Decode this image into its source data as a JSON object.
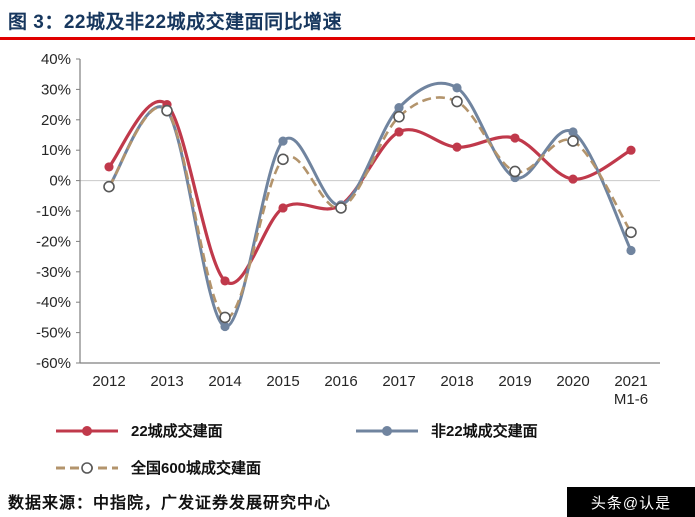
{
  "header": {
    "title": "图 3：22城及非22城成交建面同比增速"
  },
  "theme": {
    "title_color": "#17375e",
    "rule_color": "#e00000",
    "axis_color": "#7f7f7f",
    "tick_label_color": "#262626",
    "zero_line_color": "#c9c9c9",
    "source_color": "#111111",
    "watermark_bg": "#000000",
    "watermark_fg": "#ffffff"
  },
  "chart_data": {
    "type": "line",
    "title": "22城及非22城成交建面同比增速",
    "categories": [
      "2012",
      "2013",
      "2014",
      "2015",
      "2016",
      "2017",
      "2018",
      "2019",
      "2020",
      "2021"
    ],
    "x_last_sub": "M1-6",
    "ylim": [
      -60,
      40
    ],
    "ytick_step": 10,
    "ytick_suffix": "%",
    "grid": false,
    "legend_position": "bottom",
    "series": [
      {
        "name": "22城成交建面",
        "color": "#c0394b",
        "marker": "filled",
        "line_width": 3.2,
        "values": [
          4.5,
          25,
          -33,
          -9,
          -8,
          16,
          11,
          14,
          0.5,
          10
        ]
      },
      {
        "name": "非22城成交建面",
        "color": "#70849f",
        "marker": "filled",
        "line_width": 3,
        "values": [
          -2,
          23,
          -48,
          13,
          -8,
          24,
          30.5,
          1,
          16,
          -23
        ]
      },
      {
        "name": "全国600城成交建面",
        "color": "#b3946c",
        "marker": "open",
        "marker_stroke": "#595959",
        "dash": "9,5",
        "line_width": 2.6,
        "values": [
          -2,
          23,
          -45,
          7,
          -9,
          21,
          26,
          3,
          13,
          -17
        ]
      }
    ]
  },
  "footer": {
    "source": "数据来源：中指院，广发证券发展研究中心",
    "watermark": "头条@认是"
  }
}
